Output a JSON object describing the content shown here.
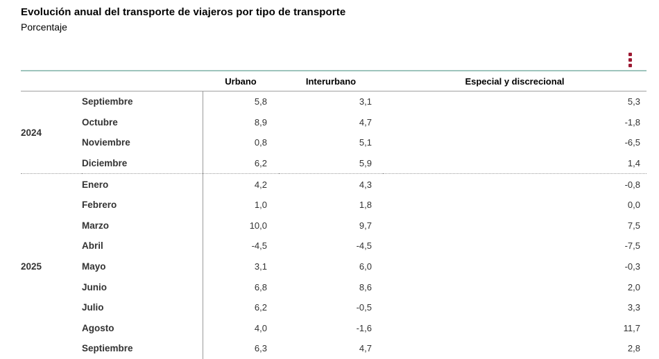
{
  "header": {
    "title": "Evolución anual del transporte de viajeros por tipo de transporte",
    "subtitle": "Porcentaje"
  },
  "menu": {
    "icon": "kebab-menu-icon",
    "color": "#9d1a33"
  },
  "colors": {
    "accent_line": "#9ec4bd",
    "header_rule": "#a0a0a0",
    "divider_dotted": "#999999",
    "text_bold": "#000000",
    "text_value": "#333333"
  },
  "table": {
    "columns": [
      "Urbano",
      "Interurbano",
      "Especial y discrecional"
    ],
    "groups": [
      {
        "year": "2024",
        "rows": [
          {
            "month": "Septiembre",
            "urbano": "5,8",
            "interurbano": "3,1",
            "especial": "5,3"
          },
          {
            "month": "Octubre",
            "urbano": "8,9",
            "interurbano": "4,7",
            "especial": "-1,8"
          },
          {
            "month": "Noviembre",
            "urbano": "0,8",
            "interurbano": "5,1",
            "especial": "-6,5"
          },
          {
            "month": "Diciembre",
            "urbano": "6,2",
            "interurbano": "5,9",
            "especial": "1,4"
          }
        ]
      },
      {
        "year": "2025",
        "rows": [
          {
            "month": "Enero",
            "urbano": "4,2",
            "interurbano": "4,3",
            "especial": "-0,8"
          },
          {
            "month": "Febrero",
            "urbano": "1,0",
            "interurbano": "1,8",
            "especial": "0,0"
          },
          {
            "month": "Marzo",
            "urbano": "10,0",
            "interurbano": "9,7",
            "especial": "7,5"
          },
          {
            "month": "Abril",
            "urbano": "-4,5",
            "interurbano": "-4,5",
            "especial": "-7,5"
          },
          {
            "month": "Mayo",
            "urbano": "3,1",
            "interurbano": "6,0",
            "especial": "-0,3"
          },
          {
            "month": "Junio",
            "urbano": "6,8",
            "interurbano": "8,6",
            "especial": "2,0"
          },
          {
            "month": "Julio",
            "urbano": "6,2",
            "interurbano": "-0,5",
            "especial": "3,3"
          },
          {
            "month": "Agosto",
            "urbano": "4,0",
            "interurbano": "-1,6",
            "especial": "11,7"
          },
          {
            "month": "Septiembre",
            "urbano": "6,3",
            "interurbano": "4,7",
            "especial": "2,8"
          }
        ]
      }
    ]
  },
  "chart_data": {
    "type": "table",
    "title": "Evolución anual del transporte de viajeros por tipo de transporte",
    "subtitle": "Porcentaje",
    "categories": [
      "2024 Septiembre",
      "2024 Octubre",
      "2024 Noviembre",
      "2024 Diciembre",
      "2025 Enero",
      "2025 Febrero",
      "2025 Marzo",
      "2025 Abril",
      "2025 Mayo",
      "2025 Junio",
      "2025 Julio",
      "2025 Agosto",
      "2025 Septiembre"
    ],
    "series": [
      {
        "name": "Urbano",
        "values": [
          5.8,
          8.9,
          0.8,
          6.2,
          4.2,
          1.0,
          10.0,
          -4.5,
          3.1,
          6.8,
          6.2,
          4.0,
          6.3
        ]
      },
      {
        "name": "Interurbano",
        "values": [
          3.1,
          4.7,
          5.1,
          5.9,
          4.3,
          1.8,
          9.7,
          -4.5,
          6.0,
          8.6,
          -0.5,
          -1.6,
          4.7
        ]
      },
      {
        "name": "Especial y discrecional",
        "values": [
          5.3,
          -1.8,
          -6.5,
          1.4,
          -0.8,
          0.0,
          7.5,
          -7.5,
          -0.3,
          2.0,
          3.3,
          11.7,
          2.8
        ]
      }
    ]
  }
}
